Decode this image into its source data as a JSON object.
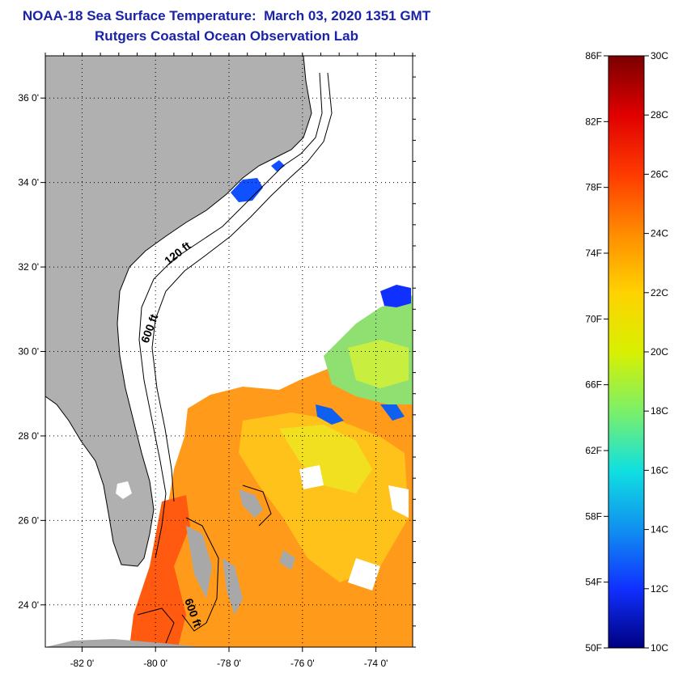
{
  "title": {
    "line1": "NOAA-18 Sea Surface Temperature:  March 03, 2020 1351 GMT",
    "line2": "Rutgers Coastal Ocean Observation Lab"
  },
  "map": {
    "lon_range": [
      -83,
      -73
    ],
    "lat_range": [
      23,
      37
    ],
    "lon_ticks": [
      {
        "lon": -82,
        "label": "-82 0'"
      },
      {
        "lon": -80,
        "label": "-80 0'"
      },
      {
        "lon": -78,
        "label": "-78 0'"
      },
      {
        "lon": -76,
        "label": "-76 0'"
      },
      {
        "lon": -74,
        "label": "-74 0'"
      }
    ],
    "lat_ticks": [
      {
        "lat": 36,
        "label": "36 0'"
      },
      {
        "lat": 34,
        "label": "34 0'"
      },
      {
        "lat": 32,
        "label": "32 0'"
      },
      {
        "lat": 30,
        "label": "30 0'"
      },
      {
        "lat": 28,
        "label": "28 0'"
      },
      {
        "lat": 26,
        "label": "26 0'"
      },
      {
        "lat": 24,
        "label": "24 0'"
      }
    ],
    "contours": [
      "120 ft",
      "600 ft",
      "600 ft"
    ],
    "land_color": "#b0b0b0"
  },
  "colorbar": {
    "fahrenheit": [
      "86F",
      "82F",
      "78F",
      "74F",
      "70F",
      "66F",
      "62F",
      "58F",
      "54F",
      "50F"
    ],
    "celsius": [
      "30C",
      "28C",
      "26C",
      "24C",
      "22C",
      "20C",
      "18C",
      "16C",
      "14C",
      "12C",
      "10C"
    ],
    "colors": [
      "#7a0000",
      "#e00000",
      "#ff3a00",
      "#ff8c00",
      "#ffd200",
      "#d8f000",
      "#7cf068",
      "#10e0e0",
      "#1090f0",
      "#1030ff",
      "#000080"
    ]
  }
}
